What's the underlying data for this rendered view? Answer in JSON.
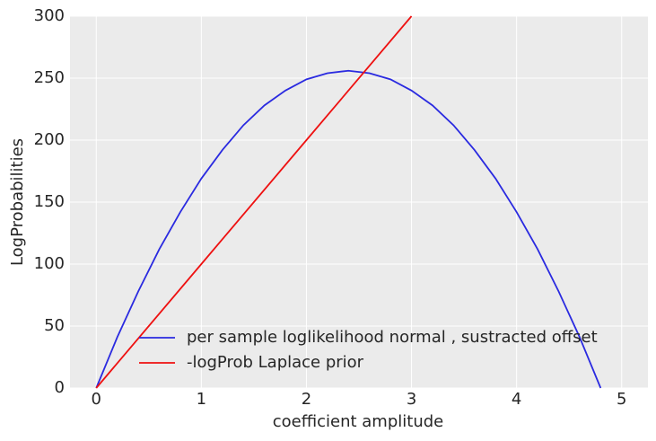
{
  "chart_data": {
    "type": "line",
    "xlabel": "coefficient amplitude",
    "ylabel": "LogProbabilities",
    "xlim": [
      -0.25,
      5.25
    ],
    "ylim": [
      0,
      300
    ],
    "xticks": [
      0,
      1,
      2,
      3,
      4,
      5
    ],
    "yticks": [
      0,
      50,
      100,
      150,
      200,
      250,
      300
    ],
    "grid": true,
    "legend": "lower right",
    "series": [
      {
        "name": "per sample loglikelihood normal , sustracted offset",
        "color": "#2a2ae0",
        "x": [
          0,
          0.2,
          0.4,
          0.6,
          0.8,
          1.0,
          1.2,
          1.4,
          1.6,
          1.8,
          2.0,
          2.2,
          2.4,
          2.6,
          2.8,
          3.0,
          3.2,
          3.4,
          3.6,
          3.8,
          4.0,
          4.2,
          4.4,
          4.6,
          4.8
        ],
        "values": [
          0,
          41,
          78,
          112,
          142,
          169,
          192,
          212,
          228,
          240,
          249,
          254,
          256,
          254,
          249,
          240,
          228,
          212,
          192,
          169,
          142,
          112,
          78,
          41,
          0
        ]
      },
      {
        "name": "-logProb Laplace prior",
        "color": "#ee1111",
        "x": [
          0,
          1,
          2,
          3
        ],
        "values": [
          0,
          100,
          200,
          300
        ]
      }
    ]
  }
}
